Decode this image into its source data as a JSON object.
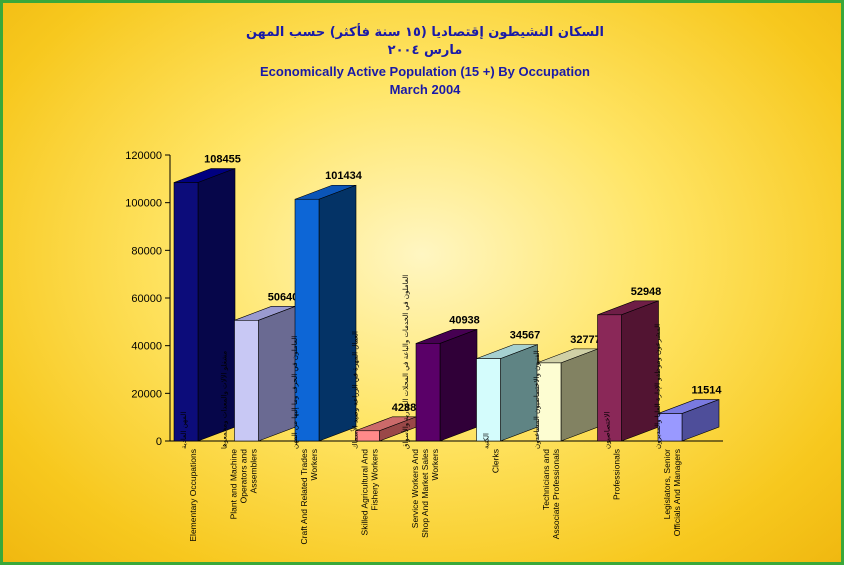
{
  "title_ar": "السكان النشيطون إقتصاديا (١٥ سنة فأكثر) حسب المهن",
  "subtitle_ar": "مارس ٢٠٠٤",
  "title_en": "Economically Active Population (15 +) By Occupation",
  "subtitle_en": "March 2004",
  "chart_data": {
    "type": "bar",
    "categories": [
      {
        "en": [
          "Elementary Occupations"
        ],
        "ar": "المهن العادية"
      },
      {
        "en": [
          "Plant and Machine",
          "Operators and",
          "Assemblers"
        ],
        "ar": "مشغلو الآلات والمعدات ومجمعوها"
      },
      {
        "en": [
          "Craft And Related Trades",
          "Workers"
        ],
        "ar": "العاملون في الحرف وما إليها من المهن"
      },
      {
        "en": [
          "Skilled Agricultural And",
          "Fishery Workers"
        ],
        "ar": "العمال المهرة في الزراعة وصيد الأسماك"
      },
      {
        "en": [
          "Service Workers And",
          "Shop And Market Sales",
          "Workers"
        ],
        "ar": "العاملون في الخدمات والباعة في المحلات التجارية والأسواق"
      },
      {
        "en": [
          "Clerks"
        ],
        "ar": "الكتبة"
      },
      {
        "en": [
          "Technicians and",
          "Associate Professionals"
        ],
        "ar": "الفنيون والاختصاصيون المساعدون"
      },
      {
        "en": [
          "Professionals"
        ],
        "ar": "الاختصاصيون"
      },
      {
        "en": [
          "Legislators, Senior",
          "Officials And Managers"
        ],
        "ar": "المشرعون وموظفو الإدارة العليا والمديرون"
      }
    ],
    "values": [
      108455,
      50640,
      101434,
      4288,
      40938,
      34567,
      32777,
      52948,
      11514
    ],
    "ylim": [
      0,
      120000
    ],
    "yticks": [
      0,
      20000,
      40000,
      60000,
      80000,
      100000,
      120000
    ],
    "grid": false,
    "legend": "none",
    "colors": [
      {
        "front": "#0c0c7a",
        "side": "#06064a",
        "top": "#000080"
      },
      {
        "front": "#c8c8f4",
        "side": "#6a6a92",
        "top": "#9a9ad0"
      },
      {
        "front": "#0d66d6",
        "side": "#043366",
        "top": "#0b55b8"
      },
      {
        "front": "#ff8a8a",
        "side": "#9a4848",
        "top": "#cc6a6a"
      },
      {
        "front": "#5a0068",
        "side": "#300038",
        "top": "#460052"
      },
      {
        "front": "#d4fcfc",
        "side": "#5f8484",
        "top": "#a6d0d0"
      },
      {
        "front": "#fdfdd2",
        "side": "#828262",
        "top": "#d0d0a6"
      },
      {
        "front": "#8a2858",
        "side": "#521432",
        "top": "#6e1e46"
      },
      {
        "front": "#9999ff",
        "side": "#4e4e9a",
        "top": "#7a7ae0"
      }
    ]
  }
}
